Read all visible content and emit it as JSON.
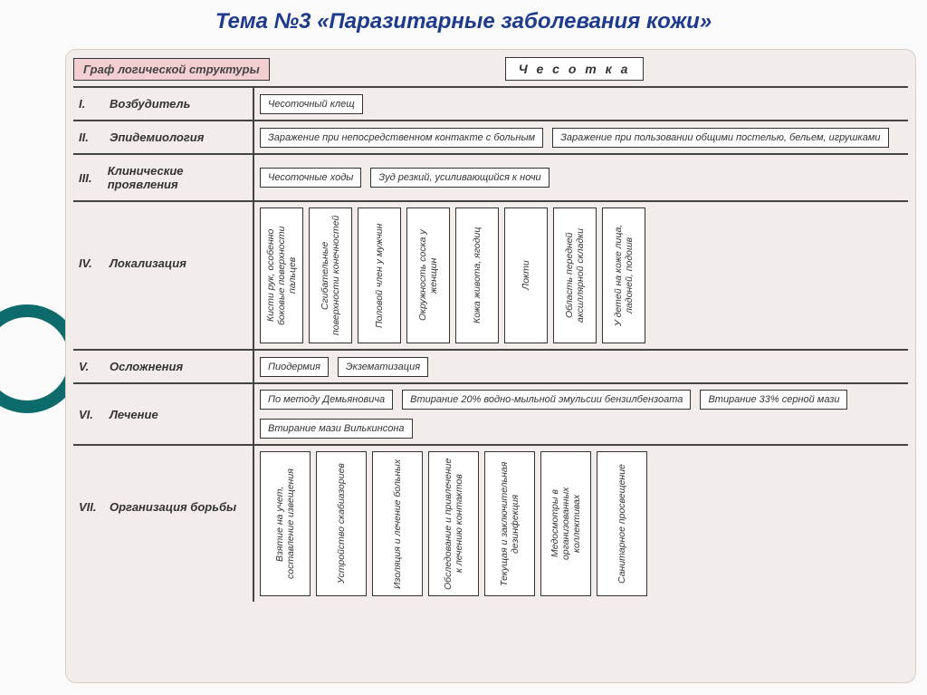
{
  "title": "Тема №3 «Паразитарные заболевания кожи»",
  "header": {
    "graph_label": "Граф логической структуры",
    "topic": "Ч е с о т к а"
  },
  "colors": {
    "title": "#1e3a8a",
    "frame_bg": "#f2edea",
    "pink_bg": "#f4cfd2",
    "box_bg": "#ffffff",
    "border": "#333333",
    "decoration": "#0e6b6b"
  },
  "rows": [
    {
      "num": "I.",
      "label": "Возбудитель",
      "items": [
        "Чесоточный клещ"
      ],
      "mode": "h"
    },
    {
      "num": "II.",
      "label": "Эпидемиология",
      "items": [
        "Заражение при непосредственном контакте с больным",
        "Заражение при пользовании общими постелью, бельем, игрушками"
      ],
      "mode": "h"
    },
    {
      "num": "III.",
      "label": "Клинические проявления",
      "items": [
        "Чесоточные ходы",
        "Зуд резкий, усиливающийся к ночи"
      ],
      "mode": "h"
    },
    {
      "num": "IV.",
      "label": "Локализация",
      "items": [
        "Кисти рук, особенно боковые поверхности пальцев",
        "Сгибательные поверхности конечностей",
        "Половой член у мужчин",
        "Окружность соска у женщин",
        "Кожа живота, ягодиц",
        "Локти",
        "Область передней аксиллярной складки",
        "У детей на коже лица, ладоней, подошв"
      ],
      "mode": "v",
      "class": "row-loc"
    },
    {
      "num": "V.",
      "label": "Осложнения",
      "items": [
        "Пиодермия",
        "Экзематизация"
      ],
      "mode": "h"
    },
    {
      "num": "VI.",
      "label": "Лечение",
      "items": [
        "По методу Демьяновича",
        "Втирание 20% водно-мыльной эмульсии бензилбензоата",
        "Втирание 33% серной мази",
        "Втирание мази Вилькинсона"
      ],
      "mode": "h"
    },
    {
      "num": "VII.",
      "label": "Организация борьбы",
      "items": [
        "Взятие на учет, составление извещения",
        "Устройство скабиазориев",
        "Изоляция и лечение больных",
        "Обследование и привлечение к лечению контактов",
        "Текущая и заключительная дезинфекция",
        "Медосмотры в организованных коллективах",
        "Санитарное просвещение"
      ],
      "mode": "v",
      "class": "row-org"
    }
  ]
}
